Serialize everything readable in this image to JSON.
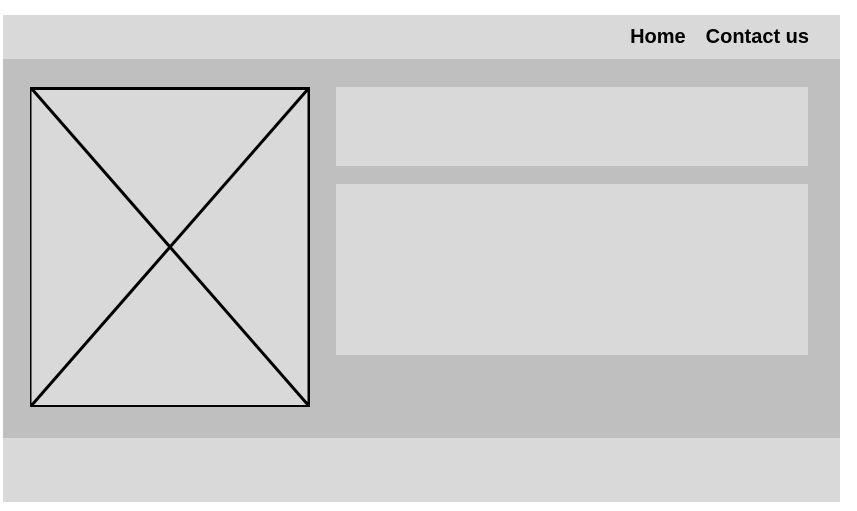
{
  "header": {
    "nav": {
      "home": "Home",
      "contact": "Contact us"
    }
  },
  "colors": {
    "header_background": "#d9d9d9",
    "main_background": "#bfbfbf",
    "content_box_background": "#d9d9d9",
    "footer_background": "#d9d9d9",
    "placeholder_stroke": "#000000"
  },
  "placeholders": {
    "image_icon": "image-placeholder-icon"
  }
}
